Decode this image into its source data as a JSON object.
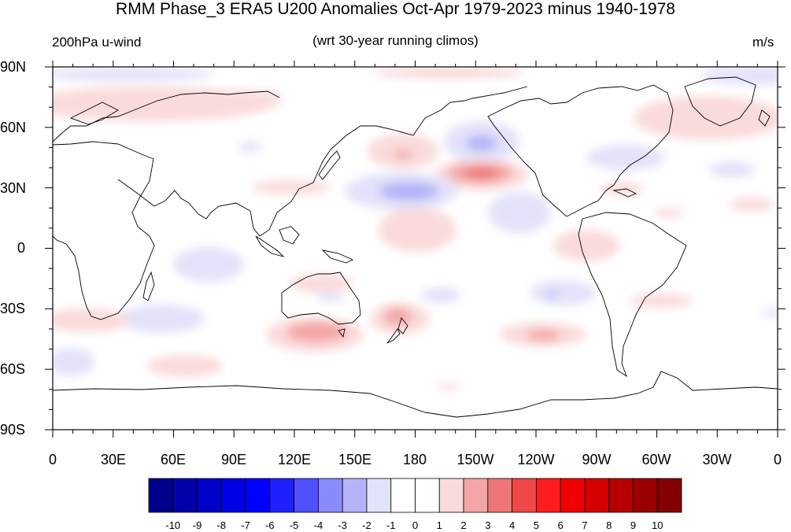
{
  "title": "RMM Phase_3 ERA5 U200 Anomalies Oct-Apr 1979-2023 minus 1940-1978",
  "subtitle_left": "200hPa u-wind",
  "subtitle_center": "(wrt 30-year running climos)",
  "subtitle_right": "m/s",
  "map": {
    "lat_labels": [
      "90N",
      "60N",
      "30N",
      "0",
      "30S",
      "60S",
      "90S"
    ],
    "lat_values": [
      90,
      60,
      30,
      0,
      -30,
      -60,
      -90
    ],
    "lon_labels": [
      "0",
      "30E",
      "60E",
      "90E",
      "120E",
      "150E",
      "180",
      "150W",
      "120W",
      "90W",
      "60W",
      "30W",
      "0"
    ],
    "lon_values": [
      0,
      30,
      60,
      90,
      120,
      150,
      180,
      210,
      240,
      270,
      300,
      330,
      360
    ]
  },
  "colorbar": {
    "labels": [
      "-10",
      "-9",
      "-8",
      "-7",
      "-6",
      "-5",
      "-4",
      "-3",
      "-2",
      "-1",
      "0",
      "1",
      "2",
      "3",
      "4",
      "5",
      "6",
      "7",
      "8",
      "9",
      "10"
    ],
    "colors": [
      "#00008b",
      "#0000a8",
      "#0000c8",
      "#0000e4",
      "#0000ff",
      "#2020ff",
      "#5050ff",
      "#8a8aff",
      "#b4b4f8",
      "#e2e2fa",
      "#ffffff",
      "#ffffff",
      "#fadada",
      "#f4a6a6",
      "#ef7676",
      "#f04848",
      "#ff1c1c",
      "#f00000",
      "#d20000",
      "#b40000",
      "#9a0000",
      "#820000"
    ]
  },
  "anomaly_features": [
    {
      "lon": 148,
      "lat": 27,
      "value": -3
    },
    {
      "lon": 214,
      "lat": 48,
      "value": -3
    },
    {
      "lon": 222,
      "lat": 36,
      "value": 4
    },
    {
      "lon": 176,
      "lat": 45,
      "value": 2
    },
    {
      "lon": 133,
      "lat": -42,
      "value": 3
    },
    {
      "lon": 171,
      "lat": -35,
      "value": 3
    },
    {
      "lon": 244,
      "lat": -44,
      "value": 3
    },
    {
      "lon": 250,
      "lat": -22,
      "value": -2
    },
    {
      "lon": 310,
      "lat": 74,
      "value": 2
    },
    {
      "lon": 36,
      "lat": 72,
      "value": 2
    }
  ]
}
